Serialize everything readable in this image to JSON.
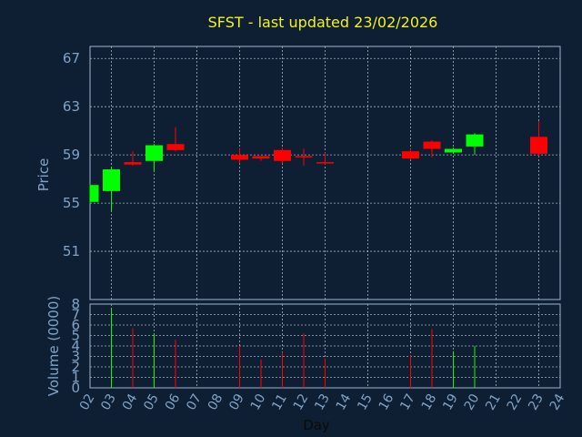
{
  "chart_data": {
    "type": "candlestick",
    "title": "SFST - last updated 23/02/2026",
    "ylabel": "Price",
    "volume_label": "Volume (0000)",
    "xlabel": "Day",
    "price_ylim": [
      47,
      68
    ],
    "price_ticks": [
      "67",
      "63",
      "59",
      "55",
      "51"
    ],
    "price_tick_values": [
      67,
      63,
      59,
      55,
      51
    ],
    "volume_ylim": [
      0,
      8
    ],
    "volume_ticks": [
      "0",
      "1",
      "2",
      "3",
      "4",
      "5",
      "6",
      "7",
      "8"
    ],
    "days": [
      "02",
      "03",
      "04",
      "05",
      "06",
      "07",
      "08",
      "09",
      "10",
      "11",
      "12",
      "13",
      "14",
      "15",
      "16",
      "17",
      "18",
      "19",
      "20",
      "21",
      "22",
      "23",
      "24"
    ],
    "colors": {
      "up": "#00ff00",
      "down": "#ff0000",
      "title": "#f2f21a",
      "axis_text": "#7fa3c8",
      "background": "#0f1f33"
    },
    "candles": [
      {
        "day": "02",
        "open": 55.1,
        "close": 56.5,
        "high": 56.6,
        "low": 55.0,
        "volume": null
      },
      {
        "day": "03",
        "open": 56.0,
        "close": 57.8,
        "high": 58.0,
        "low": 54.3,
        "volume": 7.6
      },
      {
        "day": "04",
        "open": 58.4,
        "close": 58.2,
        "high": 59.3,
        "low": 58.1,
        "volume": 5.7
      },
      {
        "day": "05",
        "open": 58.5,
        "close": 59.8,
        "high": 59.9,
        "low": 57.6,
        "volume": 5.2
      },
      {
        "day": "06",
        "open": 59.9,
        "close": 59.4,
        "high": 61.3,
        "low": 59.3,
        "volume": 4.6
      },
      {
        "day": "09",
        "open": 59.0,
        "close": 58.6,
        "high": 59.5,
        "low": 58.3,
        "volume": 4.0
      },
      {
        "day": "10",
        "open": 58.9,
        "close": 58.7,
        "high": 58.9,
        "low": 58.5,
        "volume": 2.7
      },
      {
        "day": "11",
        "open": 59.4,
        "close": 58.5,
        "high": 59.6,
        "low": 58.3,
        "volume": 3.4
      },
      {
        "day": "12",
        "open": 58.9,
        "close": 58.8,
        "high": 59.5,
        "low": 58.1,
        "volume": 5.2
      },
      {
        "day": "13",
        "open": 58.4,
        "close": 58.3,
        "high": 59.2,
        "low": 58.2,
        "volume": 2.8
      },
      {
        "day": "17",
        "open": 59.3,
        "close": 58.7,
        "high": 59.5,
        "low": 58.6,
        "volume": 3.1
      },
      {
        "day": "18",
        "open": 60.1,
        "close": 59.5,
        "high": 60.2,
        "low": 58.8,
        "volume": 5.6
      },
      {
        "day": "19",
        "open": 59.2,
        "close": 59.5,
        "high": 59.6,
        "low": 59.1,
        "volume": 3.5
      },
      {
        "day": "20",
        "open": 59.7,
        "close": 60.7,
        "high": 60.8,
        "low": 59.0,
        "volume": 4.0
      },
      {
        "day": "23",
        "open": 60.5,
        "close": 59.1,
        "high": 61.8,
        "low": 58.9,
        "volume": null
      }
    ],
    "grid": true
  }
}
